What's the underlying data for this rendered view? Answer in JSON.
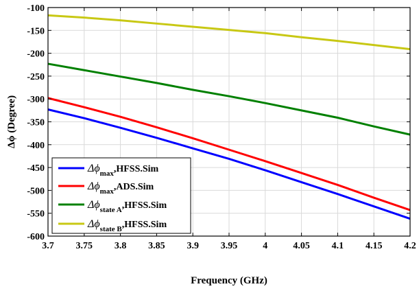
{
  "chart_data": {
    "type": "line",
    "title": "",
    "xlabel": "Frequency (GHz)",
    "ylabel": "Δϕ (Degree)",
    "xlim": [
      3.7,
      4.2
    ],
    "ylim": [
      -600,
      -100
    ],
    "xticks": [
      3.7,
      3.75,
      3.8,
      3.85,
      3.9,
      3.95,
      4.0,
      4.05,
      4.1,
      4.15,
      4.2
    ],
    "xtick_labels": [
      "3.7",
      "3.75",
      "3.8",
      "3.85",
      "3.9",
      "3.95",
      "4",
      "4.05",
      "4.1",
      "4.15",
      "4.2"
    ],
    "yticks": [
      -100,
      -150,
      -200,
      -250,
      -300,
      -350,
      -400,
      -450,
      -500,
      -550,
      -600
    ],
    "ytick_labels": [
      "-100",
      "-150",
      "-200",
      "-250",
      "-300",
      "-350",
      "-400",
      "-450",
      "-500",
      "-550",
      "-600"
    ],
    "grid": true,
    "legend_position": "bottom-left",
    "x": [
      3.7,
      3.75,
      3.8,
      3.85,
      3.9,
      3.95,
      4.0,
      4.05,
      4.1,
      4.15,
      4.2
    ],
    "series": [
      {
        "name": "Δϕmax,HFSS.Sim",
        "symbol": "Δϕ",
        "subscript": "max",
        "suffix": ",HFSS.Sim",
        "color": "#0000ff",
        "values": [
          -323,
          -342,
          -363,
          -385,
          -408,
          -431,
          -456,
          -482,
          -508,
          -535,
          -562
        ]
      },
      {
        "name": "Δϕmax,ADS.Sim",
        "symbol": "Δϕ",
        "subscript": "max",
        "suffix": ",ADS.Sim",
        "color": "#ff0000",
        "values": [
          -298,
          -318,
          -339,
          -362,
          -386,
          -411,
          -436,
          -462,
          -488,
          -516,
          -543
        ]
      },
      {
        "name": "Δϕstate A,HFSS.Sim",
        "symbol": "Δϕ",
        "subscript": "state A",
        "suffix": ",HFSS.Sim",
        "color": "#008000",
        "values": [
          -223,
          -237,
          -251,
          -265,
          -280,
          -294,
          -309,
          -325,
          -341,
          -360,
          -378
        ]
      },
      {
        "name": "Δϕstate B,HFSS.Sim",
        "symbol": "Δϕ",
        "subscript": "state B",
        "suffix": ",HFSS.Sim",
        "color": "#c8c814",
        "values": [
          -117,
          -122,
          -128,
          -135,
          -142,
          -149,
          -156,
          -165,
          -173,
          -182,
          -191
        ]
      }
    ]
  }
}
